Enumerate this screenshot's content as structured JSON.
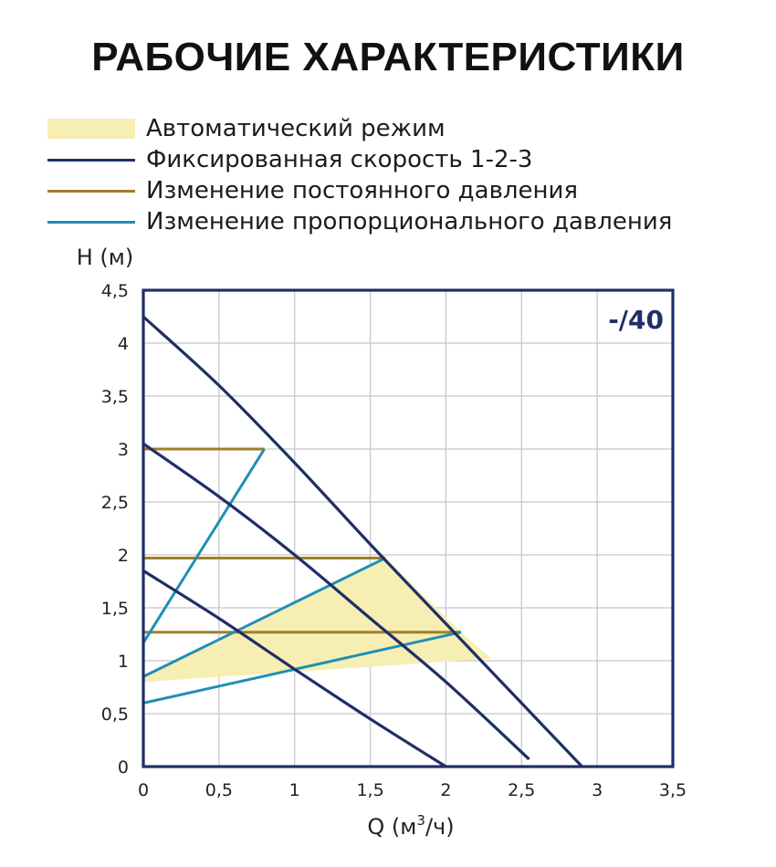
{
  "title": "РАБОЧИЕ ХАРАКТЕРИСТИКИ",
  "legend": [
    {
      "label": "Автоматический режим",
      "kind": "fill",
      "color": "#f7eeb4"
    },
    {
      "label": "Фиксированная скорость 1-2-3",
      "kind": "line",
      "color": "#1f2f66"
    },
    {
      "label": "Изменение постоянного давления",
      "kind": "line",
      "color": "#a07f2a"
    },
    {
      "label": "Изменение пропорционального давления",
      "kind": "line",
      "color": "#1f8fb5"
    }
  ],
  "colors": {
    "auto_fill": "#f7eeb4",
    "fixed_speed": "#1f2f66",
    "constant_pressure": "#a07f2a",
    "proportional_pressure": "#1f8fb5",
    "grid": "#c8c8c8",
    "frame": "#1f2f66",
    "model_tag": "#1f2f66"
  },
  "chart_data": {
    "type": "line",
    "title": "РАБОЧИЕ ХАРАКТЕРИСТИКИ",
    "model_label": "-/40",
    "xlabel_prefix": "Q (м",
    "xlabel_sup": "3",
    "xlabel_suffix": "/ч)",
    "ylabel": "H (м)",
    "xlim": [
      0,
      3.5
    ],
    "ylim": [
      0,
      4.5
    ],
    "grid": true,
    "legend_position": "top",
    "x_ticks": [
      0,
      0.5,
      1,
      1.5,
      2,
      2.5,
      3,
      3.5
    ],
    "x_tick_labels": [
      "0",
      "0,5",
      "1",
      "1,5",
      "2",
      "2,5",
      "3",
      "3,5"
    ],
    "y_ticks": [
      0,
      0.5,
      1,
      1.5,
      2,
      2.5,
      3,
      3.5,
      4,
      4.5
    ],
    "y_tick_labels": [
      "0",
      "0,5",
      "1",
      "1,5",
      "2",
      "2,5",
      "3",
      "3,5",
      "4",
      "4,5"
    ],
    "auto_region": [
      [
        0,
        0.8
      ],
      [
        0,
        0.85
      ],
      [
        1.6,
        1.97
      ],
      [
        2.1,
        1.27
      ],
      [
        2.3,
        1.02
      ],
      [
        0,
        0.8
      ]
    ],
    "fixed_speed_curves": [
      {
        "name": "1",
        "points": [
          [
            0,
            1.85
          ],
          [
            0.5,
            1.4
          ],
          [
            1.0,
            0.92
          ],
          [
            1.5,
            0.45
          ],
          [
            2.0,
            0.0
          ]
        ]
      },
      {
        "name": "2",
        "points": [
          [
            0,
            3.05
          ],
          [
            0.5,
            2.55
          ],
          [
            1.0,
            2.0
          ],
          [
            1.5,
            1.4
          ],
          [
            2.0,
            0.8
          ],
          [
            2.55,
            0.07
          ]
        ]
      },
      {
        "name": "3",
        "points": [
          [
            0,
            4.25
          ],
          [
            0.5,
            3.6
          ],
          [
            1.0,
            2.87
          ],
          [
            1.5,
            2.1
          ],
          [
            2.0,
            1.35
          ],
          [
            2.5,
            0.6
          ],
          [
            2.9,
            0.0
          ]
        ]
      }
    ],
    "constant_pressure_lines": [
      {
        "points": [
          [
            0,
            3.0
          ],
          [
            0.8,
            3.0
          ]
        ]
      },
      {
        "points": [
          [
            0,
            1.97
          ],
          [
            1.6,
            1.97
          ]
        ]
      },
      {
        "points": [
          [
            0,
            1.27
          ],
          [
            2.1,
            1.27
          ]
        ]
      }
    ],
    "proportional_pressure_lines": [
      {
        "points": [
          [
            0,
            1.17
          ],
          [
            0.8,
            3.0
          ]
        ]
      },
      {
        "points": [
          [
            0,
            0.85
          ],
          [
            1.6,
            1.97
          ]
        ]
      },
      {
        "points": [
          [
            0,
            0.6
          ],
          [
            2.1,
            1.27
          ]
        ]
      }
    ]
  }
}
